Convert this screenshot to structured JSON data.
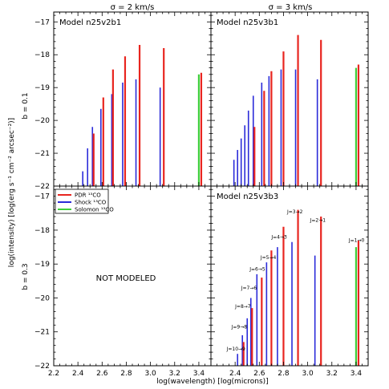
{
  "figure": {
    "col_titles": [
      "σ = 2 km/s",
      "σ = 3 km/s"
    ],
    "row_labels": [
      "b = 0.1",
      "b = 0.3"
    ],
    "xlabel": "log(wavelength)  [log(microns)]",
    "ylabel": "log(intensity)  [log(erg s⁻¹ cm⁻² arcsec⁻²)]",
    "not_modeled": "NOT MODELED"
  },
  "legend": [
    {
      "label": "PDR ¹³CO",
      "color": "#e8251f"
    },
    {
      "label": "Shock ¹³CO",
      "color": "#2b2bd9"
    },
    {
      "label": "Solomon ¹³CO",
      "color": "#3fcf3a"
    }
  ],
  "colors": {
    "pdr": "#e8251f",
    "shock": "#2b2bd9",
    "solomon": "#3fcf3a"
  },
  "chart_data": [
    {
      "type": "bar",
      "title": "Model n25v2b1",
      "xlim": [
        2.2,
        3.5
      ],
      "ylim": [
        -22,
        -16.7
      ],
      "xticks": [
        2.2,
        2.4,
        2.6,
        2.8,
        3.0,
        3.2,
        3.4
      ],
      "yticks": [
        -22,
        -21,
        -20,
        -19,
        -18,
        -17
      ],
      "series": [
        {
          "name": "Shock",
          "points": [
            [
              2.44,
              -21.55
            ],
            [
              2.48,
              -20.85
            ],
            [
              2.52,
              -20.2
            ],
            [
              2.59,
              -19.65
            ],
            [
              2.68,
              -19.2
            ],
            [
              2.77,
              -18.85
            ],
            [
              2.88,
              -18.75
            ],
            [
              3.08,
              -19.0
            ],
            [
              3.4,
              -19.8
            ]
          ]
        },
        {
          "name": "PDR",
          "points": [
            [
              2.53,
              -20.4
            ],
            [
              2.61,
              -19.3
            ],
            [
              2.69,
              -18.45
            ],
            [
              2.79,
              -18.05
            ],
            [
              2.91,
              -17.7
            ],
            [
              3.11,
              -17.8
            ]
          ]
        },
        {
          "name": "Solomon",
          "points": [
            [
              3.4,
              -18.6
            ]
          ]
        },
        {
          "name": "PDR",
          "points": [
            [
              3.42,
              -18.55
            ]
          ]
        }
      ]
    },
    {
      "type": "bar",
      "title": "Model n25v3b1",
      "xlim": [
        2.2,
        3.5
      ],
      "ylim": [
        -22,
        -16.7
      ],
      "series": [
        {
          "name": "Shock",
          "points": [
            [
              2.39,
              -21.2
            ],
            [
              2.42,
              -20.9
            ],
            [
              2.45,
              -20.55
            ],
            [
              2.48,
              -20.15
            ],
            [
              2.51,
              -19.7
            ],
            [
              2.55,
              -19.25
            ],
            [
              2.62,
              -18.85
            ],
            [
              2.68,
              -18.65
            ],
            [
              2.78,
              -18.45
            ],
            [
              2.9,
              -18.45
            ],
            [
              3.08,
              -18.75
            ],
            [
              3.4,
              -19.6
            ]
          ]
        },
        {
          "name": "PDR",
          "points": [
            [
              2.56,
              -20.2
            ],
            [
              2.64,
              -19.1
            ],
            [
              2.7,
              -18.5
            ],
            [
              2.8,
              -17.9
            ],
            [
              2.92,
              -17.4
            ],
            [
              3.11,
              -17.55
            ]
          ]
        },
        {
          "name": "Solomon",
          "points": [
            [
              3.4,
              -18.4
            ]
          ]
        },
        {
          "name": "PDR",
          "points": [
            [
              3.42,
              -18.3
            ]
          ]
        }
      ]
    },
    {
      "type": "bar",
      "title": "",
      "xlim": [
        2.2,
        3.5
      ],
      "ylim": [
        -22,
        -16.7
      ],
      "series": []
    },
    {
      "type": "bar",
      "title": "Model n25v3b3",
      "xlim": [
        2.2,
        3.5
      ],
      "ylim": [
        -22,
        -16.7
      ],
      "series": [
        {
          "name": "Shock",
          "points": [
            [
              2.42,
              -21.65
            ],
            [
              2.46,
              -21.1
            ],
            [
              2.5,
              -20.6
            ],
            [
              2.53,
              -20.0
            ],
            [
              2.58,
              -19.3
            ],
            [
              2.66,
              -18.95
            ],
            [
              2.75,
              -18.5
            ],
            [
              2.87,
              -18.35
            ],
            [
              3.06,
              -18.75
            ],
            [
              3.4,
              -19.55
            ]
          ]
        },
        {
          "name": "PDR",
          "points": [
            [
              2.47,
              -21.3
            ],
            [
              2.54,
              -20.3
            ],
            [
              2.62,
              -19.4
            ],
            [
              2.7,
              -18.6
            ],
            [
              2.8,
              -17.9
            ],
            [
              2.92,
              -17.4
            ],
            [
              3.11,
              -17.6
            ]
          ]
        },
        {
          "name": "Solomon",
          "points": [
            [
              3.4,
              -18.5
            ]
          ]
        },
        {
          "name": "PDR",
          "points": [
            [
              3.42,
              -18.3
            ]
          ]
        }
      ],
      "annotations": [
        {
          "text": "J=10→9",
          "x": 2.33,
          "y": -21.55
        },
        {
          "text": "J=9→8",
          "x": 2.37,
          "y": -20.9
        },
        {
          "text": "J=8→7",
          "x": 2.4,
          "y": -20.3
        },
        {
          "text": "J=7→6",
          "x": 2.45,
          "y": -19.75
        },
        {
          "text": "J=6→5",
          "x": 2.52,
          "y": -19.2
        },
        {
          "text": "J=5→4",
          "x": 2.61,
          "y": -18.85
        },
        {
          "text": "J=4→3",
          "x": 2.7,
          "y": -18.25
        },
        {
          "text": "J=3→2",
          "x": 2.83,
          "y": -17.5
        },
        {
          "text": "J=2→1",
          "x": 3.02,
          "y": -17.75
        },
        {
          "text": "J=1→0",
          "x": 3.34,
          "y": -18.35
        }
      ]
    }
  ]
}
